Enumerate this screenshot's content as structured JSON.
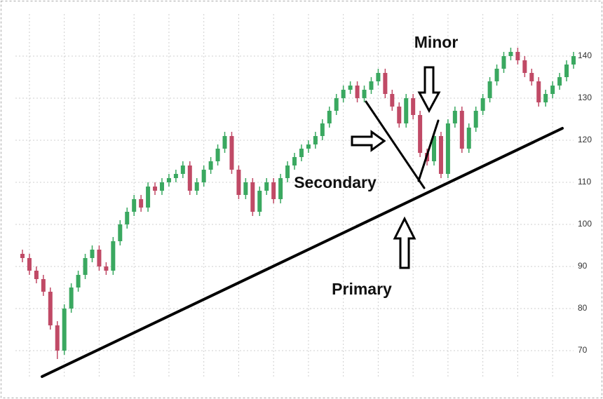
{
  "chart_data": {
    "type": "candlestick",
    "annotations": [
      "Minor",
      "Secondary",
      "Primary"
    ],
    "categories": [
      null,
      null,
      null,
      null,
      null,
      null,
      null,
      null,
      null,
      null,
      null,
      null,
      null,
      null,
      null,
      null,
      null,
      null,
      null,
      null,
      null,
      null,
      null,
      null,
      null,
      null,
      null,
      null,
      null,
      null,
      null,
      null,
      null,
      null,
      null,
      null,
      null,
      null,
      null,
      null,
      null,
      null,
      null,
      null,
      null,
      null,
      null,
      null,
      null,
      null,
      null,
      null,
      null,
      null,
      null,
      null,
      null,
      null,
      null,
      null,
      null,
      null,
      null,
      null,
      null,
      null,
      null,
      null,
      null,
      null,
      null,
      null,
      null,
      null,
      null,
      null,
      null,
      null,
      null,
      null
    ],
    "open": [
      93,
      92,
      89,
      87,
      84,
      76,
      70,
      80,
      85,
      88,
      92,
      94,
      90,
      89,
      96,
      100,
      103,
      106,
      104,
      109,
      108,
      110,
      111,
      112,
      114,
      108,
      110,
      113,
      115,
      118,
      121,
      113,
      107,
      110,
      103,
      108,
      110,
      106,
      111,
      114,
      116,
      118,
      119,
      121,
      124,
      127,
      130,
      132,
      133,
      130,
      132,
      134,
      136,
      131,
      128,
      124,
      130,
      126,
      117,
      115,
      121,
      112,
      124,
      127,
      118,
      123,
      127,
      130,
      134,
      137,
      140,
      141,
      139,
      136,
      134,
      129,
      131,
      133,
      135,
      138
    ],
    "high": [
      94,
      93,
      90,
      88,
      85,
      77,
      81,
      86,
      89,
      93,
      95,
      95,
      91,
      97,
      101,
      104,
      107,
      107,
      110,
      110,
      111,
      112,
      113,
      115,
      115,
      111,
      114,
      116,
      119,
      122,
      122,
      114,
      111,
      111,
      109,
      111,
      111,
      112,
      115,
      117,
      119,
      120,
      122,
      125,
      128,
      131,
      133,
      134,
      134,
      133,
      135,
      137,
      137,
      132,
      129,
      131,
      131,
      127,
      118,
      122,
      122,
      125,
      128,
      128,
      124,
      128,
      131,
      135,
      138,
      141,
      142,
      142,
      140,
      137,
      135,
      132,
      134,
      136,
      139,
      141
    ],
    "low": [
      91,
      88,
      86,
      83,
      75,
      68,
      69,
      79,
      84,
      87,
      91,
      89,
      88,
      88,
      95,
      99,
      102,
      103,
      103,
      107,
      107,
      109,
      110,
      111,
      107,
      107,
      109,
      112,
      114,
      117,
      112,
      106,
      106,
      102,
      102,
      107,
      105,
      105,
      110,
      113,
      115,
      117,
      118,
      120,
      123,
      126,
      129,
      131,
      129,
      129,
      131,
      133,
      130,
      127,
      123,
      123,
      125,
      116,
      114,
      114,
      111,
      111,
      123,
      117,
      117,
      122,
      126,
      129,
      133,
      136,
      139,
      138,
      135,
      133,
      128,
      128,
      130,
      132,
      134,
      137
    ],
    "close": [
      92,
      89,
      87,
      84,
      76,
      70,
      80,
      85,
      88,
      92,
      94,
      90,
      89,
      96,
      100,
      103,
      106,
      104,
      109,
      108,
      110,
      111,
      112,
      114,
      108,
      110,
      113,
      115,
      118,
      121,
      113,
      107,
      110,
      103,
      108,
      110,
      106,
      111,
      114,
      116,
      118,
      119,
      121,
      124,
      127,
      130,
      132,
      133,
      130,
      132,
      134,
      136,
      131,
      128,
      124,
      130,
      126,
      117,
      115,
      121,
      112,
      124,
      127,
      118,
      123,
      127,
      130,
      134,
      137,
      140,
      141,
      139,
      136,
      134,
      129,
      131,
      133,
      135,
      138,
      140
    ],
    "up_color": "#3aa860",
    "down_color": "#c04a66",
    "ylim": [
      62,
      150
    ],
    "yticks": [
      70,
      80,
      90,
      100,
      110,
      120,
      130,
      140
    ],
    "grid": true
  }
}
